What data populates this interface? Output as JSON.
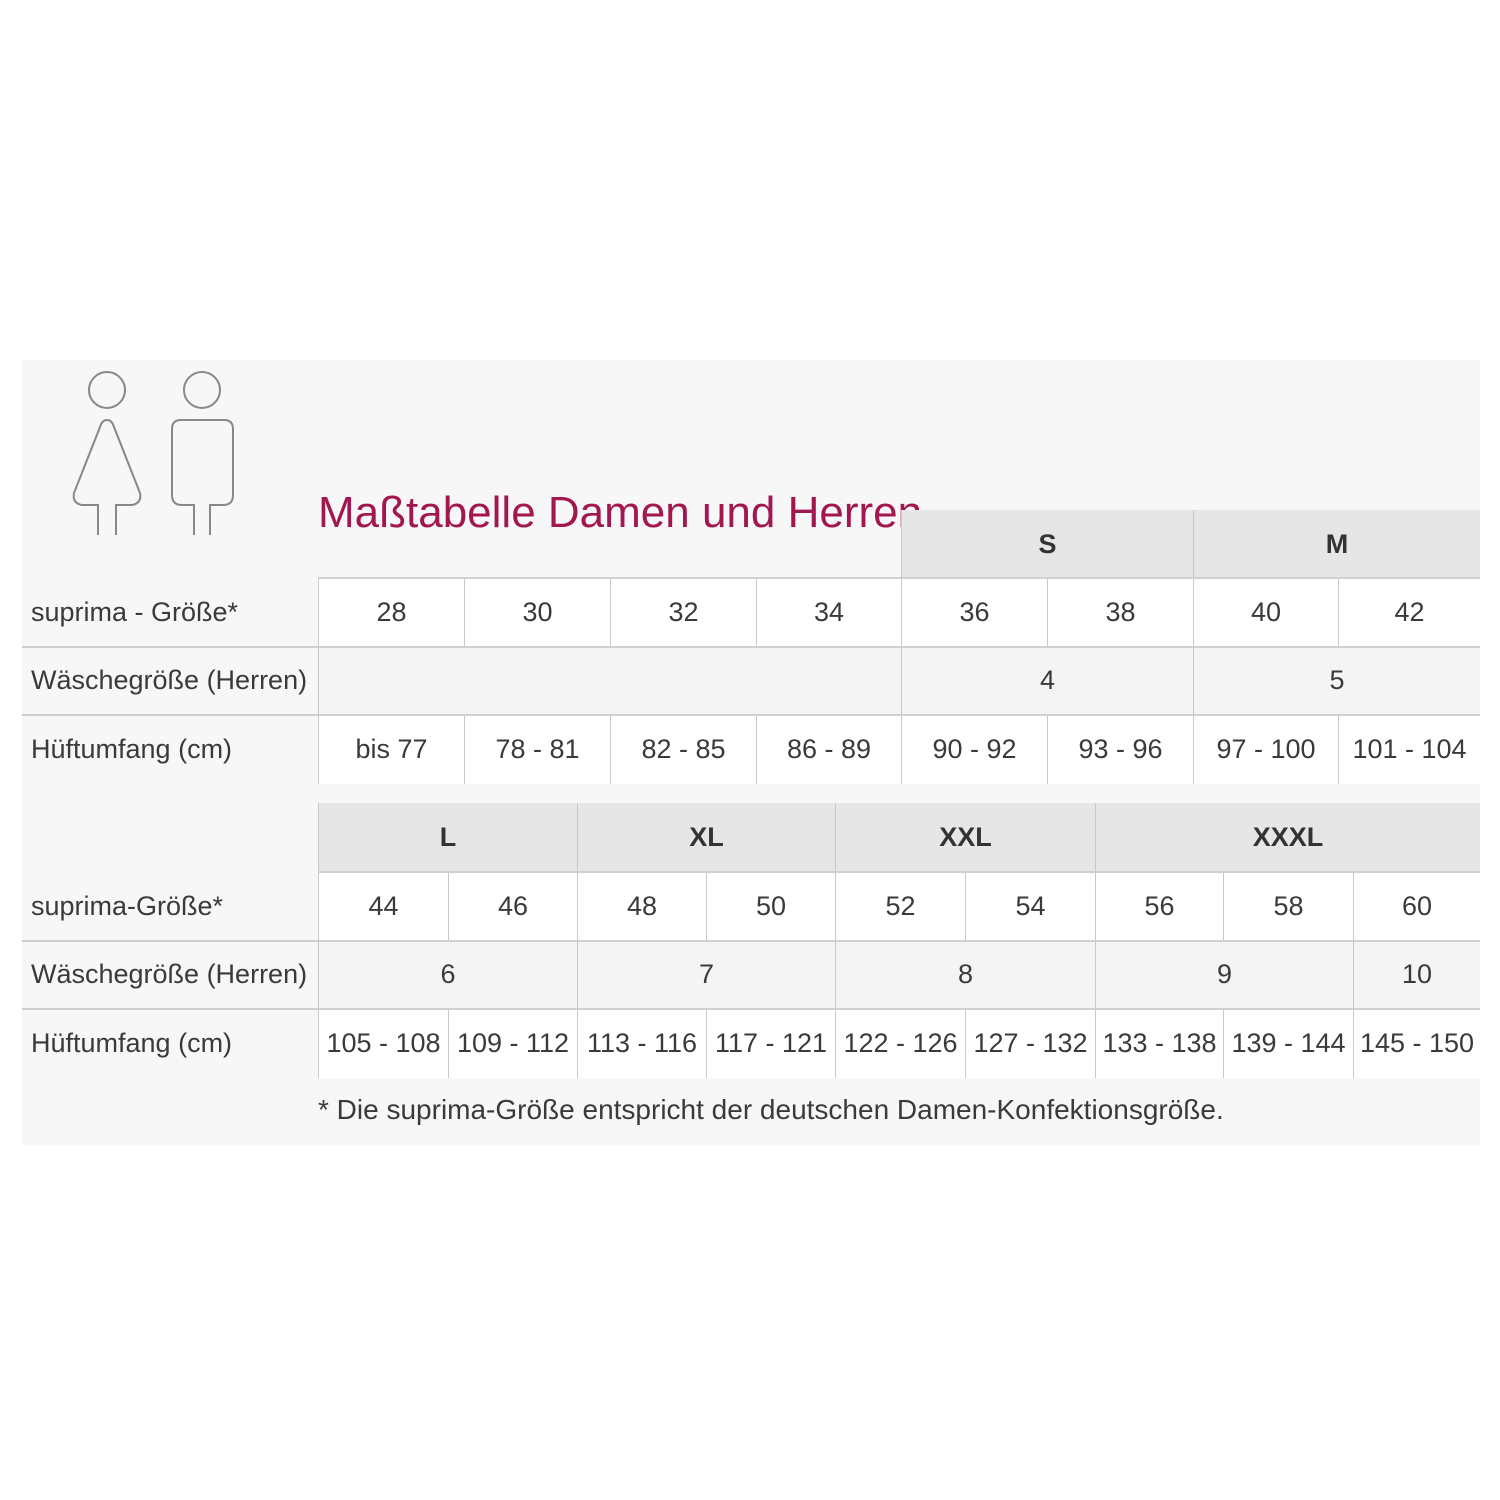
{
  "title": "Maßtabelle Damen und Herren",
  "icons": [
    "woman-icon",
    "man-icon"
  ],
  "accent_color": "#a3174f",
  "table1": {
    "header_groups": [
      {
        "label": "S",
        "span": 2
      },
      {
        "label": "M",
        "span": 2
      }
    ],
    "rows": [
      {
        "label": "suprima - Größe*",
        "cells": [
          "28",
          "30",
          "32",
          "34",
          "36",
          "38",
          "40",
          "42"
        ]
      },
      {
        "label": "Wäschegröße (Herren)",
        "cells": [
          "",
          "4",
          "5"
        ]
      },
      {
        "label": "Hüftumfang (cm)",
        "cells": [
          "bis 77",
          "78 - 81",
          "82 - 85",
          "86 - 89",
          "90 - 92",
          "93 - 96",
          "97 - 100",
          "101 - 104"
        ]
      }
    ]
  },
  "table2": {
    "header_groups": [
      {
        "label": "L"
      },
      {
        "label": "XL"
      },
      {
        "label": "XXL"
      },
      {
        "label": "XXXL"
      }
    ],
    "rows": [
      {
        "label": "suprima-Größe*",
        "cells": [
          "44",
          "46",
          "48",
          "50",
          "52",
          "54",
          "56",
          "58",
          "60"
        ]
      },
      {
        "label": "Wäschegröße (Herren)",
        "cells": [
          "6",
          "7",
          "8",
          "9",
          "10"
        ]
      },
      {
        "label": "Hüftumfang (cm)",
        "cells": [
          "105 - 108",
          "109 - 112",
          "113 - 116",
          "117 - 121",
          "122 - 126",
          "127 - 132",
          "133 - 138",
          "139 - 144",
          "145 - 150"
        ]
      }
    ]
  },
  "footnote": "* Die suprima-Größe entspricht der deutschen Damen-Konfektionsgröße."
}
